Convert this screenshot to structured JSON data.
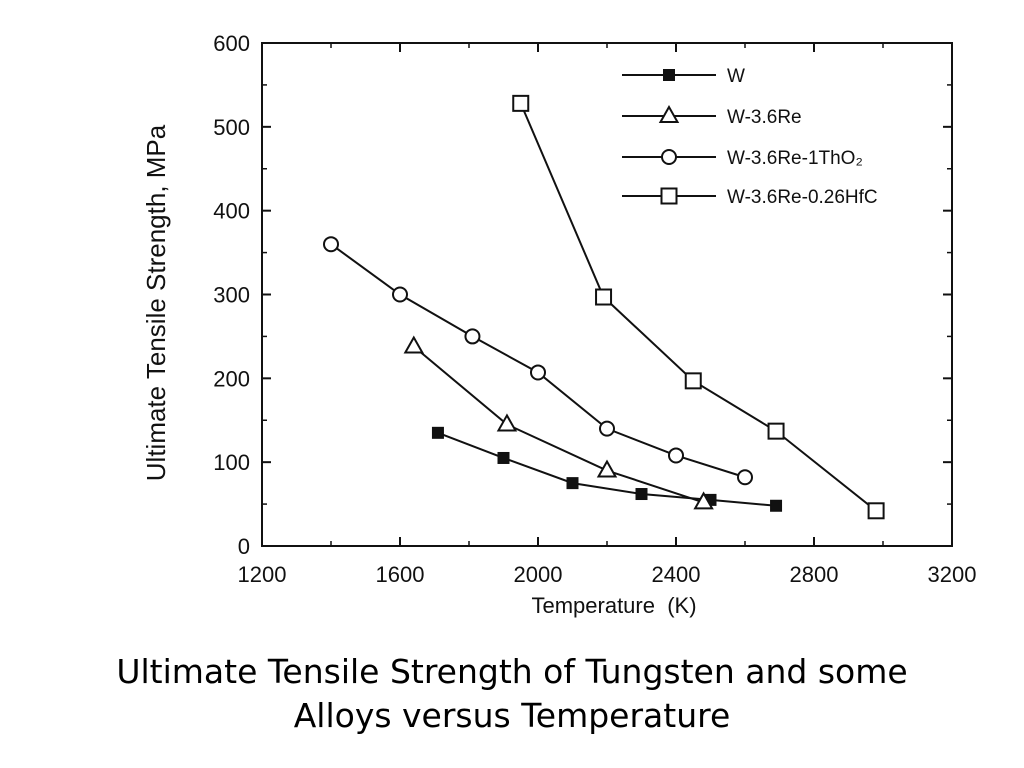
{
  "chart_data": {
    "type": "line",
    "xlabel": "Temperature  (K)",
    "ylabel": "Ultimate Tensile Strength, MPa",
    "xlim": [
      1200,
      3200
    ],
    "ylim": [
      0,
      600
    ],
    "xticks": [
      "1200",
      "1600",
      "2000",
      "2400",
      "2800",
      "3200"
    ],
    "yticks": [
      "0",
      "100",
      "200",
      "300",
      "400",
      "500",
      "600"
    ],
    "grid": false,
    "legend_position": "top-right",
    "series": [
      {
        "name": "W",
        "marker": "filled-square",
        "x": [
          1710,
          1900,
          2100,
          2300,
          2500,
          2690
        ],
        "y": [
          135,
          105,
          75,
          62,
          55,
          48
        ]
      },
      {
        "name": "W-3.6Re",
        "marker": "open-triangle",
        "x": [
          1640,
          1910,
          2200,
          2480
        ],
        "y": [
          238,
          145,
          90,
          52
        ]
      },
      {
        "name": "W-3.6Re-1ThO₂",
        "marker": "open-circle",
        "x": [
          1400,
          1600,
          1810,
          2000,
          2200,
          2400,
          2600
        ],
        "y": [
          360,
          300,
          250,
          207,
          140,
          108,
          82
        ]
      },
      {
        "name": "W-3.6Re-0.26HfC",
        "marker": "open-square",
        "x": [
          1950,
          2190,
          2450,
          2690,
          2980
        ],
        "y": [
          528,
          297,
          197,
          137,
          42
        ]
      }
    ]
  },
  "caption": {
    "line1": "Ultimate Tensile Strength of Tungsten and some",
    "line2": "Alloys versus Temperature"
  }
}
